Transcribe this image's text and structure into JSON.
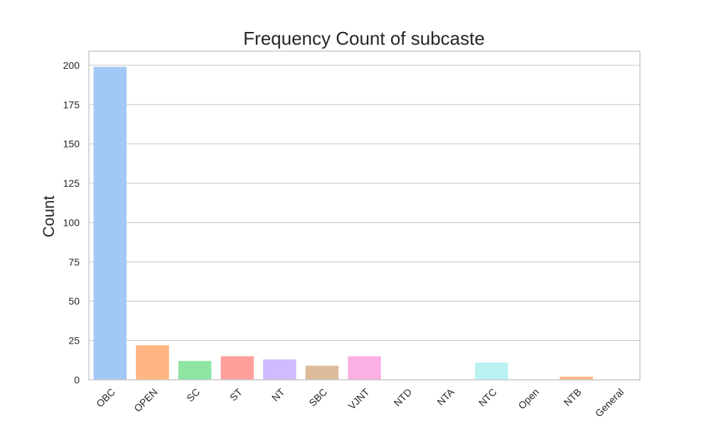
{
  "chart_data": {
    "type": "bar",
    "title": "Frequency Count of subcaste",
    "xlabel": "",
    "ylabel": "Count",
    "categories": [
      "OBC",
      "OPEN",
      "SC",
      "ST",
      "NT",
      "SBC",
      "VJNT",
      "NTD",
      "NTA",
      "NTC",
      "Open",
      "NTB",
      "General"
    ],
    "values": [
      199,
      22,
      12,
      15,
      13,
      9,
      15,
      0,
      0,
      11,
      0,
      2,
      0
    ],
    "ylim": [
      0,
      209
    ],
    "yticks": [
      0,
      25,
      50,
      75,
      100,
      125,
      150,
      175,
      200
    ],
    "colors": [
      "#a1c9f4",
      "#ffb482",
      "#8de5a1",
      "#ff9f9b",
      "#d0bbff",
      "#debb9b",
      "#fab0e4",
      "#cfcfcf",
      "#fffea3",
      "#b9f2f0",
      "#a1c9f4",
      "#ffb482",
      "#8de5a1"
    ],
    "grid": true,
    "legend": "none"
  }
}
